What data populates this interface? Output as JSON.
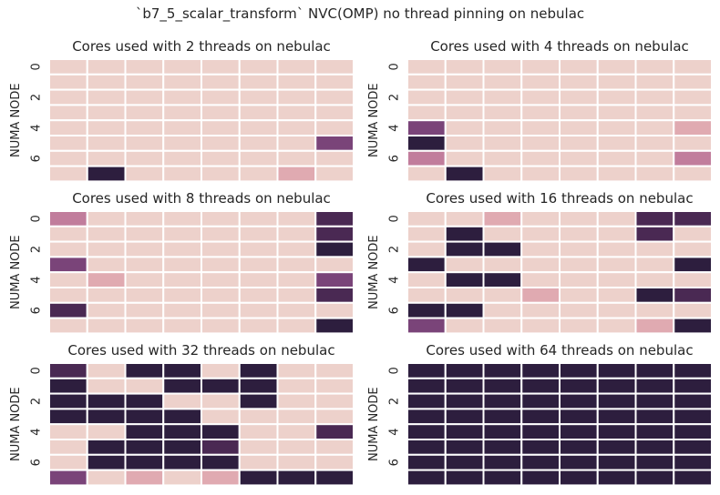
{
  "figure": {
    "suptitle": "`b7_5_scalar_transform` NVC(OMP) no thread pinning on nebulac"
  },
  "palette": {
    "0": "#edd1cb",
    "1": "#e0aab1",
    "2": "#c17d9c",
    "3": "#7a4479",
    "4": "#4a2953",
    "5": "#2d1e3e"
  },
  "chart_data": [
    {
      "type": "heatmap",
      "title": "Cores used with 2 threads on nebulac",
      "ylabel": "NUMA NODE",
      "xlabel": "",
      "y_ticks": [
        "0",
        "2",
        "4",
        "6"
      ],
      "values": [
        [
          0,
          0,
          0,
          0,
          0,
          0,
          0,
          0
        ],
        [
          0,
          0,
          0,
          0,
          0,
          0,
          0,
          0
        ],
        [
          0,
          0,
          0,
          0,
          0,
          0,
          0,
          0
        ],
        [
          0,
          0,
          0,
          0,
          0,
          0,
          0,
          0
        ],
        [
          0,
          0,
          0,
          0,
          0,
          0,
          0,
          0
        ],
        [
          0,
          0,
          0,
          0,
          0,
          0,
          0,
          3
        ],
        [
          0,
          0,
          0,
          0,
          0,
          0,
          0,
          0
        ],
        [
          0,
          5,
          0,
          0,
          0,
          0,
          1,
          0
        ]
      ]
    },
    {
      "type": "heatmap",
      "title": "Cores used with 4 threads on nebulac",
      "ylabel": "NUMA NODE",
      "xlabel": "",
      "y_ticks": [
        "0",
        "2",
        "4",
        "6"
      ],
      "values": [
        [
          0,
          0,
          0,
          0,
          0,
          0,
          0,
          0
        ],
        [
          0,
          0,
          0,
          0,
          0,
          0,
          0,
          0
        ],
        [
          0,
          0,
          0,
          0,
          0,
          0,
          0,
          0
        ],
        [
          0,
          0,
          0,
          0,
          0,
          0,
          0,
          0
        ],
        [
          3,
          0,
          0,
          0,
          0,
          0,
          0,
          1
        ],
        [
          5,
          0,
          0,
          0,
          0,
          0,
          0,
          0
        ],
        [
          2,
          0,
          0,
          0,
          0,
          0,
          0,
          2
        ],
        [
          0,
          5,
          0,
          0,
          0,
          0,
          0,
          0
        ]
      ]
    },
    {
      "type": "heatmap",
      "title": "Cores used with 8 threads on nebulac",
      "ylabel": "NUMA NODE",
      "xlabel": "",
      "y_ticks": [
        "0",
        "2",
        "4",
        "6"
      ],
      "values": [
        [
          2,
          0,
          0,
          0,
          0,
          0,
          0,
          4
        ],
        [
          0,
          0,
          0,
          0,
          0,
          0,
          0,
          4
        ],
        [
          0,
          0,
          0,
          0,
          0,
          0,
          0,
          5
        ],
        [
          3,
          0,
          0,
          0,
          0,
          0,
          0,
          0
        ],
        [
          0,
          1,
          0,
          0,
          0,
          0,
          0,
          3
        ],
        [
          0,
          0,
          0,
          0,
          0,
          0,
          0,
          4
        ],
        [
          4,
          0,
          0,
          0,
          0,
          0,
          0,
          0
        ],
        [
          0,
          0,
          0,
          0,
          0,
          0,
          0,
          5
        ]
      ]
    },
    {
      "type": "heatmap",
      "title": "Cores used with 16 threads on nebulac",
      "ylabel": "NUMA NODE",
      "xlabel": "",
      "y_ticks": [
        "0",
        "2",
        "4",
        "6"
      ],
      "values": [
        [
          0,
          0,
          1,
          0,
          0,
          0,
          4,
          4
        ],
        [
          0,
          5,
          0,
          0,
          0,
          0,
          4,
          0
        ],
        [
          0,
          5,
          5,
          0,
          0,
          0,
          0,
          0
        ],
        [
          5,
          0,
          0,
          0,
          0,
          0,
          0,
          5
        ],
        [
          0,
          5,
          5,
          0,
          0,
          0,
          0,
          0
        ],
        [
          0,
          0,
          0,
          1,
          0,
          0,
          5,
          4
        ],
        [
          5,
          5,
          0,
          0,
          0,
          0,
          0,
          0
        ],
        [
          3,
          0,
          0,
          0,
          0,
          0,
          1,
          5
        ]
      ]
    },
    {
      "type": "heatmap",
      "title": "Cores used with 32 threads on nebulac",
      "ylabel": "NUMA NODE",
      "xlabel": "",
      "y_ticks": [
        "0",
        "2",
        "4",
        "6"
      ],
      "values": [
        [
          4,
          0,
          5,
          5,
          0,
          5,
          0,
          0
        ],
        [
          5,
          0,
          0,
          5,
          5,
          5,
          0,
          0
        ],
        [
          5,
          5,
          5,
          0,
          0,
          5,
          0,
          0
        ],
        [
          5,
          5,
          5,
          5,
          0,
          0,
          0,
          0
        ],
        [
          0,
          0,
          5,
          5,
          5,
          0,
          0,
          4
        ],
        [
          0,
          5,
          5,
          5,
          4,
          0,
          0,
          0
        ],
        [
          0,
          5,
          5,
          5,
          5,
          0,
          0,
          0
        ],
        [
          3,
          0,
          1,
          0,
          1,
          5,
          5,
          5
        ]
      ]
    },
    {
      "type": "heatmap",
      "title": "Cores used with 64 threads on nebulac",
      "ylabel": "NUMA NODE",
      "xlabel": "",
      "y_ticks": [
        "0",
        "2",
        "4",
        "6"
      ],
      "values": [
        [
          5,
          5,
          5,
          5,
          5,
          5,
          5,
          5
        ],
        [
          5,
          5,
          5,
          5,
          5,
          5,
          5,
          5
        ],
        [
          5,
          5,
          5,
          5,
          5,
          5,
          5,
          5
        ],
        [
          5,
          5,
          5,
          5,
          5,
          5,
          5,
          5
        ],
        [
          5,
          5,
          5,
          5,
          5,
          5,
          5,
          5
        ],
        [
          5,
          5,
          5,
          5,
          5,
          5,
          5,
          5
        ],
        [
          5,
          5,
          5,
          5,
          5,
          5,
          5,
          5
        ],
        [
          5,
          5,
          5,
          5,
          5,
          5,
          5,
          5
        ]
      ]
    }
  ]
}
